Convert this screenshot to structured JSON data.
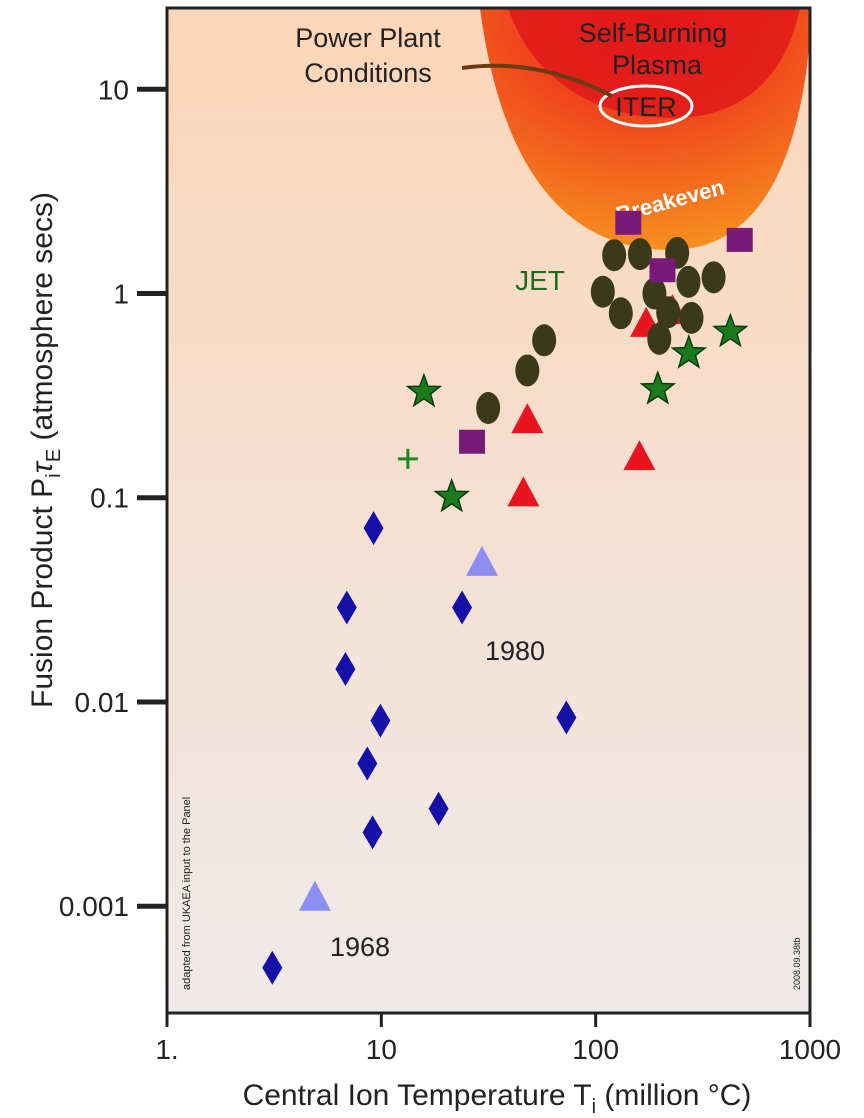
{
  "chart_data": {
    "type": "scatter",
    "x_scale": "log",
    "y_scale": "log",
    "xlim": [
      1,
      1000
    ],
    "ylim": [
      0.0003,
      25
    ],
    "x_ticks": [
      {
        "value": 1,
        "label": "1."
      },
      {
        "value": 10,
        "label": "10"
      },
      {
        "value": 100,
        "label": "100"
      },
      {
        "value": 1000,
        "label": "1000"
      }
    ],
    "y_ticks": [
      {
        "value": 10,
        "label": "10"
      },
      {
        "value": 1,
        "label": "1"
      },
      {
        "value": 0.1,
        "label": "0.1"
      },
      {
        "value": 0.01,
        "label": "0.01"
      },
      {
        "value": 0.001,
        "label": "0.001"
      }
    ],
    "xlabel": "Central Ion Temperature T",
    "xlabel_sub": "i",
    "xlabel_suffix": " (million °C)",
    "ylabel": "Fusion Product P",
    "ylabel_sub1": "i",
    "ylabel_tau": "τ",
    "ylabel_sub2": "E",
    "ylabel_suffix": " (atmosphere secs)",
    "grid": false,
    "colors": {
      "background_top": "#fcd6b8",
      "background_bottom": "#efeaea",
      "diamond": "#1410a8",
      "light_triangle": "#8c8ef2",
      "red_triangle": "#e8141e",
      "star": "#1b7a1b",
      "circle": "#3a3a18",
      "square": "#7a1a78",
      "plus": "#1b8a1b",
      "region_outer": "#f5731e",
      "region_inner": "#e11a1a",
      "annotation_text": "#222222",
      "region_text": "#f6c4b9",
      "jet_text": "#1c6e1c"
    },
    "series": [
      {
        "marker": "diamond",
        "color": "#1410a8",
        "points": [
          [
            3.1,
            0.0005
          ],
          [
            9.2,
            0.071
          ],
          [
            6.9,
            0.029
          ],
          [
            6.8,
            0.0145
          ],
          [
            9.9,
            0.0081
          ],
          [
            8.6,
            0.005
          ],
          [
            9.1,
            0.0023
          ],
          [
            18.5,
            0.003
          ],
          [
            23.8,
            0.029
          ],
          [
            73,
            0.0084
          ]
        ]
      },
      {
        "marker": "triangle",
        "color": "#8c8ef2",
        "points": [
          [
            4.9,
            0.0011
          ],
          [
            29.5,
            0.048
          ]
        ]
      },
      {
        "marker": "triangle",
        "color": "#e8141e",
        "points": [
          [
            48,
            0.24
          ],
          [
            46,
            0.105
          ],
          [
            160,
            0.158
          ],
          [
            172,
            0.71
          ],
          [
            228,
            0.82
          ]
        ]
      },
      {
        "marker": "star",
        "color": "#1b7a1b",
        "points": [
          [
            15.8,
            0.33
          ],
          [
            21.3,
            0.101
          ],
          [
            195,
            0.34
          ],
          [
            272,
            0.51
          ],
          [
            425,
            0.65
          ]
        ]
      },
      {
        "marker": "circle",
        "color": "#3a3a18",
        "points": [
          [
            31.5,
            0.275
          ],
          [
            48,
            0.42
          ],
          [
            57.5,
            0.59
          ],
          [
            108,
            1.02
          ],
          [
            122,
            1.54
          ],
          [
            131,
            0.8
          ],
          [
            161,
            1.56
          ],
          [
            188,
            1.0
          ],
          [
            218,
            0.81
          ],
          [
            240,
            1.58
          ],
          [
            271,
            1.14
          ],
          [
            280,
            0.76
          ],
          [
            198,
            0.6
          ],
          [
            355,
            1.2
          ]
        ]
      },
      {
        "marker": "square",
        "color": "#7a1a78",
        "points": [
          [
            26.5,
            0.188
          ],
          [
            142,
            2.22
          ],
          [
            205,
            1.3
          ],
          [
            470,
            1.83
          ]
        ]
      },
      {
        "marker": "plus",
        "color": "#1b8a1b",
        "points": [
          [
            13.3,
            0.155
          ]
        ]
      }
    ],
    "annotations": {
      "power_plant_line1": "Power Plant",
      "power_plant_line2": "Conditions",
      "self_burning_line1": "Self-Burning",
      "self_burning_line2": "Plasma",
      "iter": "ITER",
      "breakeven": "Breakeven",
      "jet": "JET",
      "year_1980": "1980",
      "year_1968": "1968",
      "source_note": "adapted from UKAEA input to the Panel",
      "figure_id": "2008.09.38tb"
    }
  }
}
